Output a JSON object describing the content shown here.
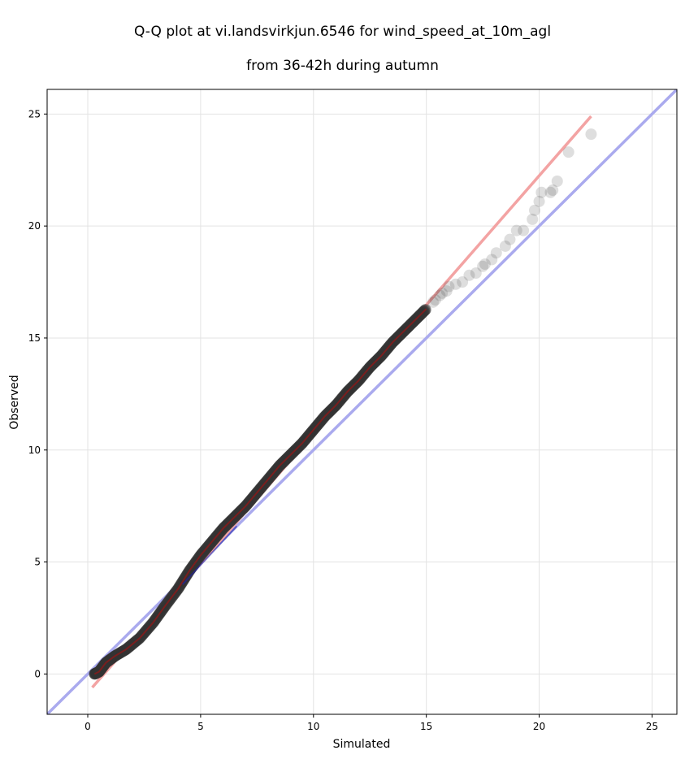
{
  "chart_data": {
    "type": "scatter",
    "title_line1": "Q-Q plot at vi.landsvirkjun.6546 for wind_speed_at_10m_agl",
    "title_line2": "from 36-42h during autumn",
    "xlabel": "Simulated",
    "ylabel": "Observed",
    "xlim": [
      -1.8,
      26.1
    ],
    "ylim": [
      -1.8,
      26.1
    ],
    "xticks": [
      0,
      5,
      10,
      15,
      20,
      25
    ],
    "yticks": [
      0,
      5,
      10,
      15,
      20,
      25
    ],
    "grid": true,
    "colors": {
      "points": "#333333",
      "identity_line": "#aaaaee",
      "fit_line": "#f3a3a3",
      "fit_overlay": "#aa1111",
      "low_overlay": "#2222aa"
    },
    "fit_line": {
      "x": [
        0.2,
        22.3
      ],
      "y": [
        -0.6,
        24.9
      ]
    },
    "identity_line": {
      "x": [
        -1.8,
        26.1
      ],
      "y": [
        -1.8,
        26.1
      ]
    },
    "tail_points": {
      "x": [
        22.3,
        21.3,
        20.8,
        20.6,
        20.5,
        20.1,
        20.0,
        19.8,
        19.7,
        19.3,
        19.0,
        18.7,
        18.5,
        18.1,
        17.9,
        17.6,
        17.5,
        17.2,
        16.9,
        16.6,
        16.3,
        16.0,
        15.9,
        15.7,
        15.6,
        15.4,
        15.3
      ],
      "y": [
        24.1,
        23.3,
        22.0,
        21.6,
        21.5,
        21.5,
        21.1,
        20.7,
        20.3,
        19.8,
        19.8,
        19.4,
        19.1,
        18.8,
        18.5,
        18.3,
        18.2,
        17.9,
        17.8,
        17.5,
        17.4,
        17.3,
        17.1,
        17.0,
        16.9,
        16.7,
        16.6
      ]
    },
    "main_curve": {
      "x": [
        0.3,
        0.5,
        0.8,
        1.2,
        1.7,
        2.3,
        2.9,
        3.4,
        4.0,
        4.5,
        5.0,
        5.5,
        6.0,
        6.5,
        7.0,
        7.5,
        8.0,
        8.5,
        9.0,
        9.5,
        10.0,
        10.5,
        11.0,
        11.5,
        12.0,
        12.5,
        13.0,
        13.5,
        14.0,
        14.5,
        15.0
      ],
      "y": [
        0.0,
        0.1,
        0.5,
        0.8,
        1.1,
        1.6,
        2.3,
        3.0,
        3.8,
        4.6,
        5.3,
        5.9,
        6.5,
        7.0,
        7.5,
        8.1,
        8.7,
        9.3,
        9.8,
        10.3,
        10.9,
        11.5,
        12.0,
        12.6,
        13.1,
        13.7,
        14.2,
        14.8,
        15.3,
        15.8,
        16.3
      ]
    }
  }
}
